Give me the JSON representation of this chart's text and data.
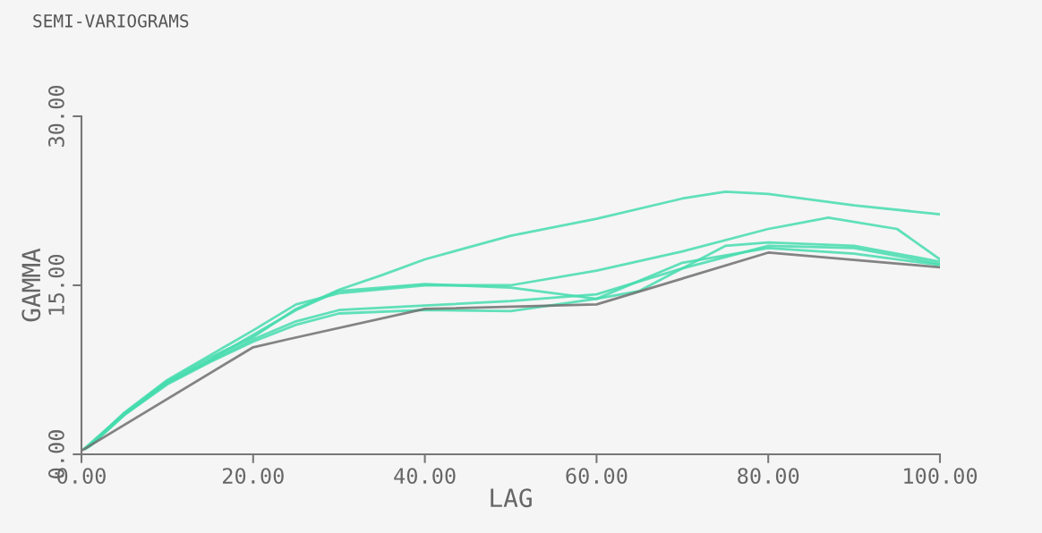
{
  "chart_data": {
    "type": "line",
    "title": "SEMI-VARIOGRAMS",
    "xlabel": "LAG",
    "ylabel": "GAMMA",
    "xlim": [
      0,
      100
    ],
    "ylim": [
      0,
      30
    ],
    "xticks": [
      {
        "value": 0,
        "label": "0.00"
      },
      {
        "value": 20,
        "label": "20.00"
      },
      {
        "value": 40,
        "label": "40.00"
      },
      {
        "value": 60,
        "label": "60.00"
      },
      {
        "value": 80,
        "label": "80.00"
      },
      {
        "value": 100,
        "label": "100.00"
      }
    ],
    "yticks": [
      {
        "value": 0,
        "label": "0.00"
      },
      {
        "value": 15,
        "label": "15.00"
      },
      {
        "value": 30,
        "label": "30.00"
      }
    ],
    "grid": false,
    "marker": "none",
    "line_style": "solid",
    "series": [
      {
        "color": "#45dcae",
        "x": [
          0.3,
          5,
          10,
          15,
          20,
          25,
          30,
          35,
          40,
          50,
          60,
          70,
          75,
          80,
          90,
          100
        ],
        "values": [
          0.5,
          3.6,
          6.5,
          8.6,
          10.4,
          12.9,
          14.6,
          15.9,
          17.3,
          19.4,
          20.9,
          22.7,
          23.3,
          23.1,
          22.1,
          21.3
        ]
      },
      {
        "color": "#45dcae",
        "x": [
          0.5,
          5,
          10,
          15,
          20,
          25,
          30,
          40,
          50,
          60,
          70,
          80,
          87,
          95,
          100
        ],
        "values": [
          0.5,
          3.7,
          6.6,
          8.8,
          11.0,
          13.3,
          14.3,
          15.0,
          15.0,
          16.3,
          18.0,
          20.0,
          21.0,
          20.0,
          17.3
        ]
      },
      {
        "color": "#45dcae",
        "x": [
          0.7,
          5,
          10,
          15,
          20,
          25,
          30,
          40,
          50,
          60,
          65,
          70,
          80,
          90,
          100
        ],
        "values": [
          0.6,
          3.6,
          6.4,
          8.4,
          10.6,
          12.8,
          14.5,
          15.1,
          14.8,
          13.8,
          14.5,
          16.5,
          18.5,
          18.3,
          16.9
        ]
      },
      {
        "color": "#45dcae",
        "x": [
          0.9,
          5,
          10,
          15,
          20,
          25,
          30,
          40,
          50,
          60,
          70,
          75,
          80,
          90,
          100
        ],
        "values": [
          0.7,
          3.5,
          6.3,
          8.3,
          10.2,
          11.8,
          12.8,
          13.2,
          13.6,
          14.2,
          16.5,
          18.5,
          18.8,
          18.5,
          17.1
        ]
      },
      {
        "color": "#45dcae",
        "x": [
          1.1,
          5,
          10,
          15,
          20,
          25,
          30,
          40,
          50,
          60,
          70,
          80,
          90,
          100
        ],
        "values": [
          0.8,
          3.5,
          6.2,
          8.2,
          10.0,
          11.5,
          12.5,
          12.8,
          12.7,
          13.8,
          17.0,
          18.3,
          17.8,
          16.8
        ]
      },
      {
        "color": "#6f6f6f",
        "x": [
          0.2,
          20,
          24,
          40,
          60,
          80,
          100
        ],
        "values": [
          0.4,
          9.5,
          10.2,
          12.9,
          13.3,
          17.9,
          16.6
        ]
      }
    ]
  }
}
